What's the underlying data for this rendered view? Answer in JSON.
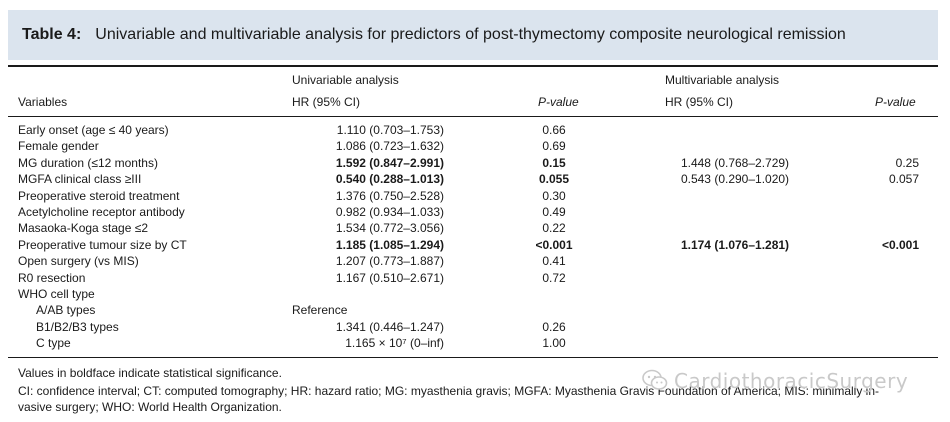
{
  "title": {
    "label": "Table 4:",
    "text": "Univariable and multivariable analysis for predictors of post-thymectomy composite neurological remission"
  },
  "header": {
    "univariable": "Univariable analysis",
    "multivariable": "Multivariable analysis",
    "variables": "Variables",
    "hr_uni": "HR (95% CI)",
    "p_uni": "P-value",
    "hr_multi": "HR (95% CI)",
    "p_multi": "P-value"
  },
  "rows": [
    {
      "var": "Early onset (age ≤ 40 years)",
      "hr": "1.110 (0.703–1.753)",
      "p": "0.66",
      "mhr": "",
      "mp": "",
      "bold": false,
      "mbold": false
    },
    {
      "var": "Female gender",
      "hr": "1.086 (0.723–1.632)",
      "p": "0.69",
      "mhr": "",
      "mp": "",
      "bold": false,
      "mbold": false
    },
    {
      "var": "MG duration (≤12 months)",
      "hr": "1.592 (0.847–2.991)",
      "p": "0.15",
      "mhr": "1.448 (0.768–2.729)",
      "mp": "0.25",
      "bold": true,
      "mbold": false
    },
    {
      "var": "MGFA clinical class ≥III",
      "hr": "0.540 (0.288–1.013)",
      "p": "0.055",
      "mhr": "0.543 (0.290–1.020)",
      "mp": "0.057",
      "bold": true,
      "mbold": false
    },
    {
      "var": "Preoperative steroid treatment",
      "hr": "1.376 (0.750–2.528)",
      "p": "0.30",
      "mhr": "",
      "mp": "",
      "bold": false,
      "mbold": false
    },
    {
      "var": "Acetylcholine receptor antibody",
      "hr": "0.982 (0.934–1.033)",
      "p": "0.49",
      "mhr": "",
      "mp": "",
      "bold": false,
      "mbold": false
    },
    {
      "var": "Masaoka-Koga stage ≤2",
      "hr": "1.534 (0.772–3.056)",
      "p": "0.22",
      "mhr": "",
      "mp": "",
      "bold": false,
      "mbold": false
    },
    {
      "var": "Preoperative tumour size by CT",
      "hr": "1.185 (1.085–1.294)",
      "p": "<0.001",
      "mhr": "1.174 (1.076–1.281)",
      "mp": "<0.001",
      "bold": true,
      "mbold": true
    },
    {
      "var": "Open surgery (vs MIS)",
      "hr": "1.207 (0.773–1.887)",
      "p": "0.41",
      "mhr": "",
      "mp": "",
      "bold": false,
      "mbold": false
    },
    {
      "var": "R0 resection",
      "hr": "1.167 (0.510–2.671)",
      "p": "0.72",
      "mhr": "",
      "mp": "",
      "bold": false,
      "mbold": false
    },
    {
      "var": "WHO cell type",
      "hr": "",
      "p": "",
      "mhr": "",
      "mp": "",
      "bold": false,
      "mbold": false
    },
    {
      "var": "A/AB types",
      "hr": "Reference",
      "p": "",
      "mhr": "",
      "mp": "",
      "bold": false,
      "mbold": false,
      "indent": true,
      "hrLeft": true
    },
    {
      "var": "B1/B2/B3 types",
      "hr": "1.341 (0.446–1.247)",
      "p": "0.26",
      "mhr": "",
      "mp": "",
      "bold": false,
      "mbold": false,
      "indent": true
    },
    {
      "var": "C type",
      "hr": "1.165 × 10⁷ (0–inf)",
      "p": "1.00",
      "mhr": "",
      "mp": "",
      "bold": false,
      "mbold": false,
      "indent": true
    }
  ],
  "notes": [
    "Values in boldface indicate statistical significance.",
    "CI: confidence interval; CT: computed tomography; HR: hazard ratio; MG: myasthenia gravis; MGFA: Myasthenia Gravis Foundation of America; MIS: minimally in-",
    "vasive surgery; WHO: World Health Organization."
  ],
  "watermark": {
    "text": "CardiothoracicSurgery",
    "icon": "wechat-icon"
  }
}
